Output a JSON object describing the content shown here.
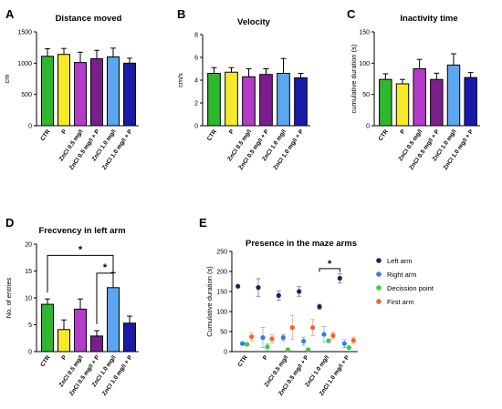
{
  "panels": [
    {
      "label": "A",
      "title": "Distance moved"
    },
    {
      "label": "B",
      "title": "Velocity"
    },
    {
      "label": "C",
      "title": "Inactivity time"
    },
    {
      "label": "D",
      "title": "Frecvency in left arm"
    },
    {
      "label": "E",
      "title": "Presence in the maze arms"
    }
  ],
  "chart_data": [
    {
      "type": "bar",
      "title": "Distance moved",
      "ylabel": "cm",
      "ylim": [
        0,
        1500
      ],
      "yticks": [
        "0",
        "500",
        "1000",
        "1500"
      ],
      "categories": [
        "CTR",
        "P",
        "ZnCl 0.5 mg/l",
        "ZnCl 0.5 mg/l + P",
        "ZnCl 1.0 mg/l",
        "ZnCl 1.0 mg/l + P"
      ],
      "values": [
        1110,
        1140,
        1010,
        1070,
        1100,
        1000
      ],
      "errors": [
        120,
        95,
        165,
        135,
        140,
        80
      ],
      "colors": [
        "#2db82d",
        "#f5ea2a",
        "#b43cc8",
        "#7a1f8c",
        "#5aa6f0",
        "#1a1aa8"
      ]
    },
    {
      "type": "bar",
      "title": "Velocity",
      "ylabel": "cm/s",
      "ylim": [
        0,
        8
      ],
      "yticks": [
        "0",
        "2",
        "4",
        "6",
        "8"
      ],
      "categories": [
        "CTR",
        "P",
        "ZnCl 0.5 mg/l",
        "ZnCl 0.5 mg/l + P",
        "ZnCl 1.0 mg/l",
        "ZnCl 1.0 mg/l + P"
      ],
      "values": [
        4.6,
        4.7,
        4.3,
        4.5,
        4.6,
        4.2
      ],
      "errors": [
        0.5,
        0.4,
        0.7,
        0.5,
        1.3,
        0.4
      ],
      "colors": [
        "#2db82d",
        "#f5ea2a",
        "#b43cc8",
        "#7a1f8c",
        "#5aa6f0",
        "#1a1aa8"
      ]
    },
    {
      "type": "bar",
      "title": "Inactivity time",
      "ylabel": "cumulative duration (s)",
      "ylim": [
        0,
        150
      ],
      "yticks": [
        "0",
        "50",
        "100",
        "150"
      ],
      "categories": [
        "CTR",
        "P",
        "ZnCl 0.5 mg/l",
        "ZnCl 0.5 mg/l + P",
        "ZnCl 1.0 mg/l",
        "ZnCl 1.0 mg/l + P"
      ],
      "values": [
        74,
        67,
        91,
        74,
        97,
        77
      ],
      "errors": [
        9,
        7,
        15,
        10,
        18,
        8
      ],
      "colors": [
        "#2db82d",
        "#f5ea2a",
        "#b43cc8",
        "#7a1f8c",
        "#5aa6f0",
        "#1a1aa8"
      ]
    },
    {
      "type": "bar",
      "title": "Frecvency in left arm",
      "ylabel": "No. of entries",
      "ylim": [
        0,
        20
      ],
      "yticks": [
        "0",
        "5",
        "10",
        "15",
        "20"
      ],
      "categories": [
        "CTR",
        "P",
        "ZnCl 0.5 mg/l",
        "ZnCl 0.5 mg/l + P",
        "ZnCl 1.0 mg/l",
        "ZnCl 1.0 mg/l + P"
      ],
      "values": [
        8.8,
        4.1,
        7.9,
        2.9,
        11.9,
        5.3
      ],
      "errors": [
        1.0,
        1.8,
        1.9,
        1.0,
        2.8,
        1.3
      ],
      "colors": [
        "#2db82d",
        "#f5ea2a",
        "#b43cc8",
        "#7a1f8c",
        "#5aa6f0",
        "#1a1aa8"
      ],
      "annotations": [
        {
          "text": "*",
          "from": "CTR",
          "to": "ZnCl 1.0 mg/l"
        },
        {
          "text": "*",
          "from": "ZnCl 0.5 mg/l + P",
          "to": "ZnCl 1.0 mg/l"
        }
      ]
    },
    {
      "type": "scatter",
      "title": "Presence in the maze arms",
      "ylabel": "Cumulative duration (s)",
      "ylim": [
        0,
        250
      ],
      "yticks": [
        "0",
        "50",
        "100",
        "150",
        "200",
        "250"
      ],
      "categories": [
        "CTR",
        "P",
        "ZnCl 0.5 mg/l",
        "ZnCl 0.5 mg/l + P",
        "ZnCl 1.0 mg/l",
        "ZnCl 1.0 mg/l + P"
      ],
      "legend_position": "right",
      "series": [
        {
          "name": "Left arm",
          "color": "#2a1a5e",
          "values": [
            163,
            160,
            140,
            150,
            112,
            183
          ],
          "errors": [
            0,
            22,
            12,
            12,
            6,
            12
          ]
        },
        {
          "name": "Right arm",
          "color": "#2f7fe0",
          "values": [
            20,
            35,
            35,
            26,
            43,
            20
          ],
          "errors": [
            3,
            25,
            8,
            10,
            20,
            10
          ]
        },
        {
          "name": "Decission point",
          "color": "#3ccf3c",
          "values": [
            18,
            12,
            5,
            5,
            27,
            10
          ],
          "errors": [
            3,
            8,
            2,
            2,
            4,
            3
          ]
        },
        {
          "name": "First arm",
          "color": "#f4632c",
          "values": [
            37,
            32,
            60,
            60,
            40,
            28
          ],
          "errors": [
            10,
            10,
            30,
            20,
            8,
            8
          ]
        }
      ],
      "annotations": [
        {
          "text": "*",
          "from": "ZnCl 1.0 mg/l",
          "to": "ZnCl 1.0 mg/l + P"
        }
      ]
    }
  ]
}
